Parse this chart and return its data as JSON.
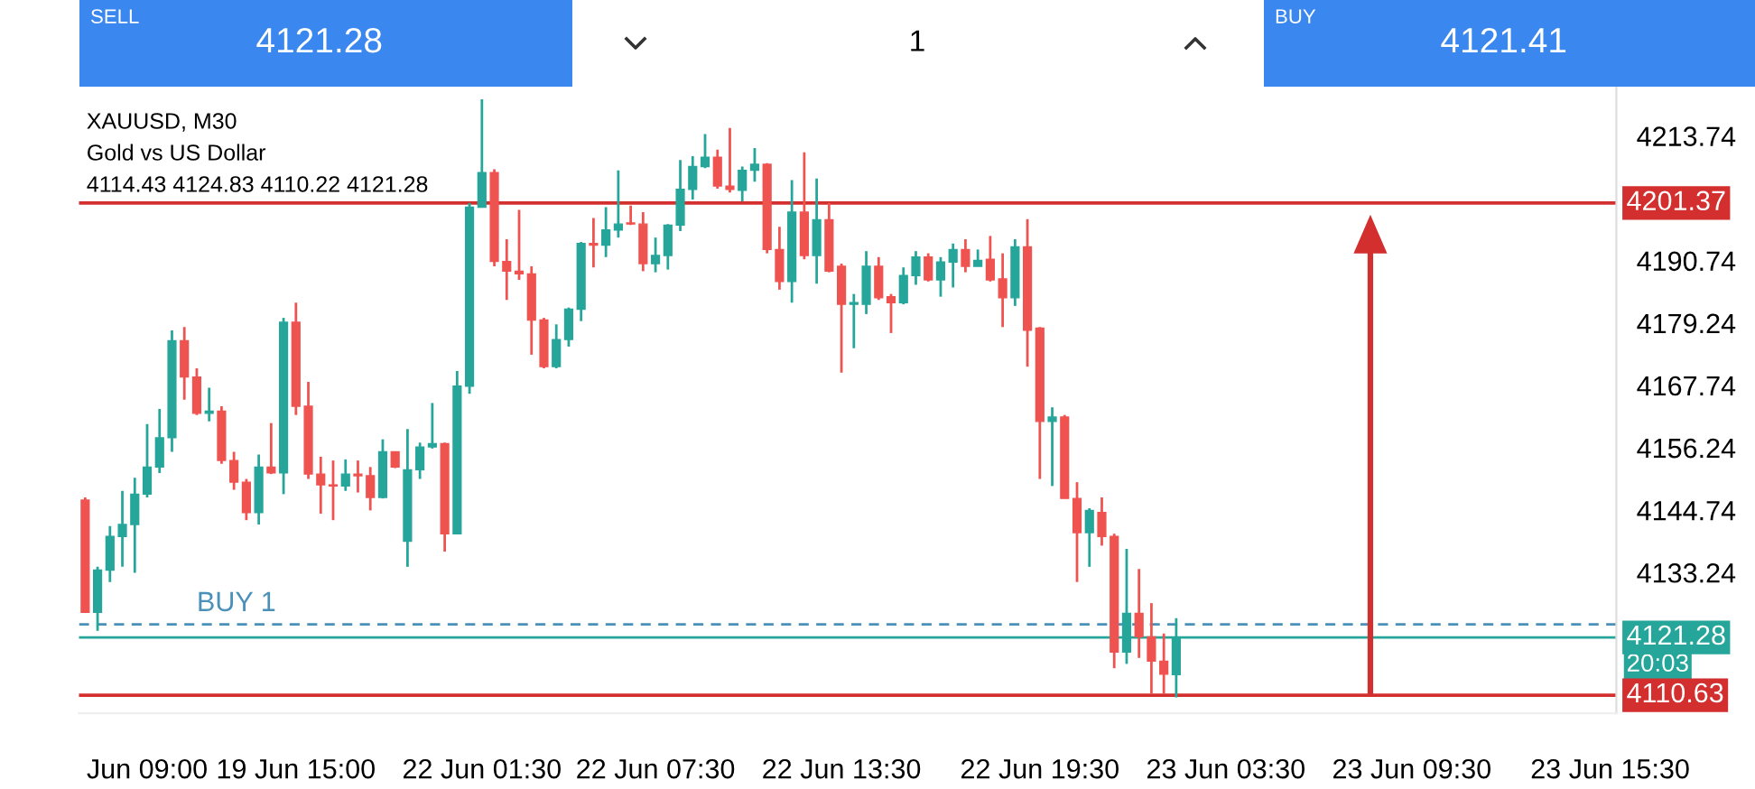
{
  "chart_data": {
    "type": "candlestick",
    "title": "XAUUSD, M30",
    "subtitle": "Gold vs US Dollar",
    "annotations": [
      "4114.43 4124.83 4110.22 4121.28",
      "SELL",
      "4121.28",
      "1",
      "BUY",
      "4121.41",
      "20:03"
    ],
    "categories": [
      null,
      null,
      null,
      null,
      null,
      "Jun 09:00",
      null,
      null,
      null,
      null,
      null,
      null,
      null,
      null,
      null,
      null,
      null,
      "19 Jun 15:00",
      null,
      null,
      null,
      null,
      null,
      null,
      null,
      null,
      null,
      null,
      null,
      null,
      null,
      null,
      "22 Jun 01:30",
      null,
      null,
      null,
      null,
      null,
      null,
      null,
      null,
      null,
      null,
      null,
      null,
      null,
      "22 Jun 07:30",
      null,
      null,
      null,
      null,
      null,
      null,
      null,
      null,
      null,
      null,
      null,
      null,
      null,
      null,
      "22 Jun 13:30",
      null,
      null,
      null,
      null,
      null,
      null,
      null,
      null,
      null,
      null,
      null,
      null,
      null,
      null,
      null,
      "22 Jun 19:30",
      null,
      null,
      null,
      null,
      null,
      null,
      null,
      null,
      null,
      null,
      null,
      null,
      null,
      null,
      "23 Jun 03:30",
      null,
      null,
      null,
      null,
      null,
      null,
      null,
      null,
      null,
      null,
      null,
      null,
      null,
      null,
      "23 Jun 09:30",
      null,
      null,
      null,
      null,
      null,
      null,
      null,
      null,
      null,
      null,
      null,
      null,
      null,
      null,
      null,
      "23 Jun 15:30"
    ],
    "ohlc": [
      [
        4146.6,
        4147.1,
        4125.9,
        4125.9
      ],
      [
        4125.9,
        4134.3,
        4122.5,
        4133.7
      ],
      [
        4133.7,
        4141.8,
        4131.5,
        4139.9
      ],
      [
        4139.9,
        4148.3,
        4134.3,
        4142.1
      ],
      [
        4142.1,
        4150.7,
        4133.2,
        4147.7
      ],
      [
        4147.7,
        4160.6,
        4147.1,
        4152.7
      ],
      [
        4152.7,
        4163.4,
        4151.6,
        4158.1
      ],
      [
        4158.1,
        4177.9,
        4155.5,
        4176.0
      ],
      [
        4176.0,
        4178.5,
        4165.1,
        4169.3
      ],
      [
        4169.3,
        4170.9,
        4162.3,
        4162.6
      ],
      [
        4162.6,
        4167.3,
        4161.1,
        4163.0
      ],
      [
        4163.0,
        4163.9,
        4153.3,
        4153.9
      ],
      [
        4153.9,
        4155.5,
        4148.5,
        4149.9
      ],
      [
        4149.9,
        4150.5,
        4142.9,
        4144.3
      ],
      [
        4144.3,
        4155.0,
        4142.1,
        4152.7
      ],
      [
        4152.7,
        4160.8,
        4151.4,
        4151.6
      ],
      [
        4151.6,
        4180.2,
        4147.7,
        4179.4
      ],
      [
        4179.4,
        4183.0,
        4162.3,
        4163.9
      ],
      [
        4163.9,
        4168.4,
        4150.5,
        4151.4
      ],
      [
        4151.4,
        4154.6,
        4144.1,
        4149.4
      ],
      [
        4149.4,
        4153.9,
        4142.9,
        4149.2
      ],
      [
        4149.2,
        4154.1,
        4148.3,
        4151.4
      ],
      [
        4151.4,
        4153.9,
        4148.0,
        4151.1
      ],
      [
        4151.1,
        4152.7,
        4144.7,
        4147.1
      ],
      [
        4147.1,
        4157.8,
        4146.9,
        4155.5
      ],
      [
        4155.5,
        4155.5,
        4152.5,
        4152.7
      ],
      [
        4139.0,
        4159.7,
        4134.3,
        4152.2
      ],
      [
        4152.2,
        4157.2,
        4150.5,
        4156.4
      ],
      [
        4156.4,
        4164.5,
        4156.1,
        4157.0
      ],
      [
        4157.0,
        4157.2,
        4137.1,
        4140.4
      ],
      [
        4140.4,
        4170.4,
        4140.4,
        4167.6
      ],
      [
        4167.6,
        4201.4,
        4166.2,
        4200.6
      ],
      [
        4200.6,
        4220.5,
        4200.6,
        4207.0
      ],
      [
        4207.0,
        4207.6,
        4189.7,
        4190.6
      ],
      [
        4190.6,
        4194.7,
        4183.5,
        4188.8
      ],
      [
        4188.8,
        4200.1,
        4187.2,
        4188.3
      ],
      [
        4188.3,
        4189.7,
        4173.4,
        4179.8
      ],
      [
        4179.8,
        4180.2,
        4170.9,
        4171.2
      ],
      [
        4171.2,
        4179.0,
        4170.9,
        4176.2
      ],
      [
        4176.2,
        4182.1,
        4174.9,
        4181.8
      ],
      [
        4181.8,
        4194.2,
        4179.6,
        4193.9
      ],
      [
        4193.9,
        4198.6,
        4189.5,
        4193.6
      ],
      [
        4193.6,
        4200.6,
        4191.4,
        4196.4
      ],
      [
        4196.4,
        4207.4,
        4195.0,
        4197.5
      ],
      [
        4197.7,
        4200.9,
        4197.3,
        4197.5
      ],
      [
        4197.5,
        4199.7,
        4188.8,
        4190.2
      ],
      [
        4190.2,
        4195.0,
        4188.6,
        4191.7
      ],
      [
        4191.7,
        4197.5,
        4189.1,
        4197.3
      ],
      [
        4197.3,
        4209.3,
        4196.2,
        4203.9
      ],
      [
        4203.9,
        4210.0,
        4202.0,
        4208.1
      ],
      [
        4208.1,
        4214.1,
        4207.8,
        4209.8
      ],
      [
        4209.8,
        4211.2,
        4204.0,
        4204.5
      ],
      [
        4204.5,
        4215.2,
        4203.3,
        4203.9
      ],
      [
        4203.7,
        4208.1,
        4201.7,
        4207.4
      ],
      [
        4207.4,
        4211.5,
        4205.3,
        4208.5
      ],
      [
        4208.5,
        4208.7,
        4192.1,
        4192.8
      ],
      [
        4192.8,
        4197.0,
        4185.4,
        4186.9
      ],
      [
        4186.9,
        4205.6,
        4183.0,
        4199.7
      ],
      [
        4199.7,
        4210.7,
        4191.0,
        4191.7
      ],
      [
        4191.7,
        4205.9,
        4186.5,
        4198.3
      ],
      [
        4198.3,
        4201.4,
        4188.6,
        4188.8
      ],
      [
        4189.7,
        4190.2,
        4170.1,
        4182.7
      ],
      [
        4182.7,
        4184.6,
        4174.6,
        4183.0
      ],
      [
        4182.7,
        4192.5,
        4180.9,
        4189.7
      ],
      [
        4189.7,
        4191.4,
        4183.5,
        4183.9
      ],
      [
        4184.1,
        4184.6,
        4177.4,
        4183.0
      ],
      [
        4183.0,
        4189.5,
        4182.7,
        4188.0
      ],
      [
        4188.0,
        4192.5,
        4186.3,
        4191.4
      ],
      [
        4191.4,
        4192.1,
        4186.9,
        4187.2
      ],
      [
        4187.2,
        4191.4,
        4184.1,
        4190.5
      ],
      [
        4190.5,
        4193.9,
        4185.8,
        4192.8
      ],
      [
        4192.8,
        4194.7,
        4188.6,
        4189.7
      ],
      [
        4189.7,
        4192.8,
        4189.7,
        4190.8
      ],
      [
        4191.0,
        4195.3,
        4186.9,
        4187.2
      ],
      [
        4187.4,
        4192.1,
        4178.5,
        4183.9
      ],
      [
        4183.9,
        4194.7,
        4182.4,
        4193.3
      ],
      [
        4193.3,
        4198.4,
        4171.2,
        4177.9
      ],
      [
        4178.3,
        4178.5,
        4150.5,
        4161.1
      ],
      [
        4161.1,
        4163.7,
        4149.2,
        4161.9
      ],
      [
        4161.9,
        4162.3,
        4146.9,
        4146.9
      ],
      [
        4146.9,
        4149.9,
        4131.5,
        4140.6
      ],
      [
        4140.6,
        4145.1,
        4134.3,
        4144.7
      ],
      [
        4144.3,
        4147.1,
        4138.2,
        4139.9
      ],
      [
        4139.9,
        4140.4,
        4115.6,
        4118.6
      ],
      [
        4118.6,
        4137.6,
        4116.4,
        4125.7
      ],
      [
        4125.7,
        4133.9,
        4117.5,
        4121.4
      ],
      [
        4121.4,
        4127.6,
        4110.8,
        4116.9
      ],
      [
        4116.9,
        4122.0,
        4110.8,
        4114.5
      ],
      [
        4114.43,
        4124.83,
        4110.22,
        4121.28
      ],
      null,
      null,
      null,
      null,
      null,
      null,
      null,
      null,
      null,
      null,
      null,
      null,
      null,
      null,
      null,
      null,
      null,
      null,
      null,
      null,
      null,
      null,
      null,
      null,
      null,
      null,
      null,
      null,
      null,
      null,
      null,
      null,
      null,
      null,
      null
    ],
    "colors": [
      "#ef5350",
      "#26a69a",
      "#26a69a",
      "#26a69a",
      "#26a69a",
      "#26a69a",
      "#26a69a",
      "#26a69a",
      "#ef5350",
      "#ef5350",
      "#26a69a",
      "#ef5350",
      "#ef5350",
      "#ef5350",
      "#26a69a",
      "#ef5350",
      "#26a69a",
      "#ef5350",
      "#ef5350",
      "#ef5350",
      "#ef5350",
      "#26a69a",
      "#ef5350",
      "#ef5350",
      "#26a69a",
      "#ef5350",
      "#26a69a",
      "#26a69a",
      "#26a69a",
      "#ef5350",
      "#26a69a",
      "#26a69a",
      "#26a69a",
      "#ef5350",
      "#ef5350",
      "#ef5350",
      "#ef5350",
      "#ef5350",
      "#26a69a",
      "#26a69a",
      "#26a69a",
      "#ef5350",
      "#26a69a",
      "#26a69a",
      "#ef5350",
      "#ef5350",
      "#26a69a",
      "#26a69a",
      "#26a69a",
      "#26a69a",
      "#26a69a",
      "#ef5350",
      "#ef5350",
      "#26a69a",
      "#26a69a",
      "#ef5350",
      "#ef5350",
      "#26a69a",
      "#ef5350",
      "#26a69a",
      "#ef5350",
      "#ef5350",
      "#26a69a",
      "#26a69a",
      "#ef5350",
      "#ef5350",
      "#26a69a",
      "#26a69a",
      "#ef5350",
      "#26a69a",
      "#26a69a",
      "#ef5350",
      "#26a69a",
      "#ef5350",
      "#ef5350",
      "#26a69a",
      "#ef5350",
      "#ef5350",
      "#26a69a",
      "#ef5350",
      "#ef5350",
      "#26a69a",
      "#ef5350",
      "#ef5350",
      "#26a69a",
      "#ef5350",
      "#ef5350",
      "#ef5350",
      "#26a69a",
      null,
      null,
      null,
      null,
      null,
      null,
      null,
      null,
      null,
      null,
      null,
      null,
      null,
      null,
      null,
      null,
      null,
      null,
      null,
      null,
      null,
      null,
      null,
      null,
      null,
      null,
      null,
      null,
      null,
      null,
      null,
      null,
      null,
      null,
      null
    ],
    "ylim": [
      4107.3,
      4222.8
    ],
    "yticks": [
      4213.74,
      4190.74,
      4179.24,
      4167.74,
      4156.24,
      4144.74,
      4133.24
    ],
    "ref_lines": [
      {
        "axis": "y",
        "value": 4201.37,
        "label": "4201.37",
        "color": "#d32f2f",
        "line_style": "solid"
      },
      {
        "axis": "y",
        "value": 4110.63,
        "label": "4110.63",
        "color": "#d32f2f",
        "line_style": "solid"
      },
      {
        "axis": "y",
        "value": 4123.7,
        "label": "BUY 1",
        "color": "#4a90b8",
        "line_style": "dashed"
      },
      {
        "axis": "y",
        "value": 4121.28,
        "label": "4121.28",
        "color": "#26a69a",
        "line_style": "solid"
      }
    ],
    "grid": false
  }
}
